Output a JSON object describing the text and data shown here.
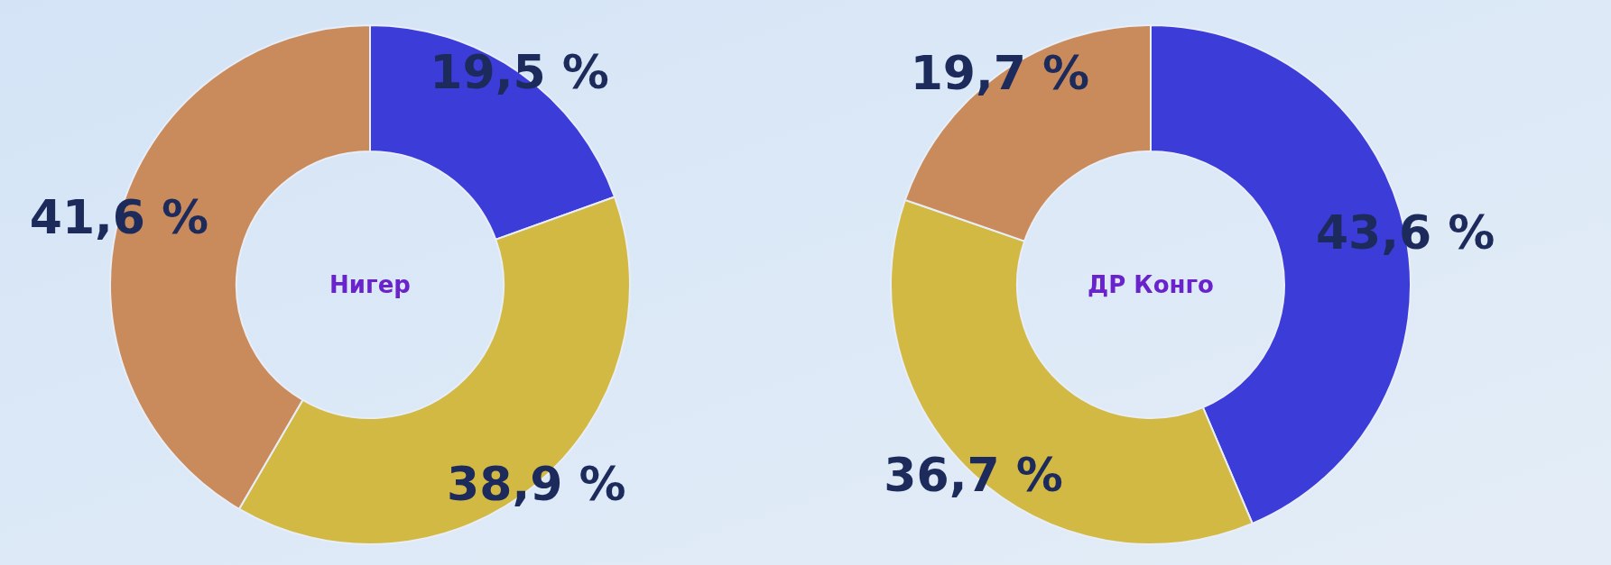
{
  "chart_data": [
    {
      "type": "donut",
      "title": "Нигер",
      "categories": [
        null,
        null,
        null
      ],
      "values": [
        19.5,
        38.9,
        41.6
      ],
      "value_labels": [
        "19,5 %",
        "38,9 %",
        "41,6 %"
      ],
      "colors": [
        "#3c3cd8",
        "#d2b944",
        "#c98b5c"
      ]
    },
    {
      "type": "donut",
      "title": "ДР Конго",
      "categories": [
        null,
        null,
        null
      ],
      "values": [
        43.6,
        36.7,
        19.7
      ],
      "value_labels": [
        "43,6 %",
        "36,7 %",
        "19,7 %"
      ],
      "colors": [
        "#3c3cd8",
        "#d2b944",
        "#c98b5c"
      ]
    }
  ]
}
